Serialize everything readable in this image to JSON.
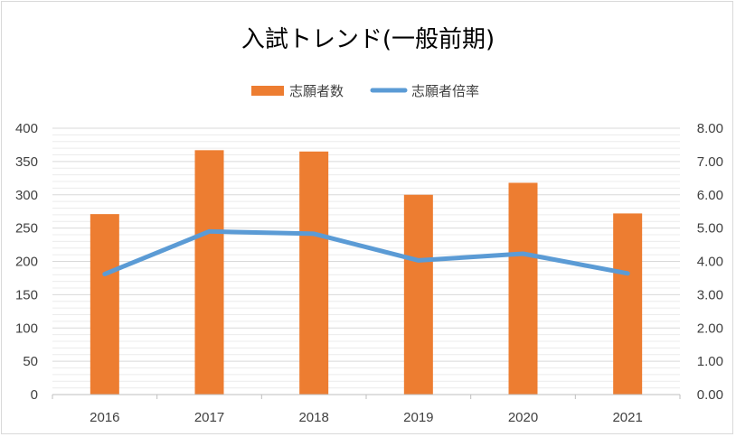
{
  "chart_data": {
    "type": "bar",
    "title": "入試トレンド(一般前期)",
    "categories": [
      "2016",
      "2017",
      "2018",
      "2019",
      "2020",
      "2021"
    ],
    "series": [
      {
        "name": "志願者数",
        "type": "bar",
        "axis": "left",
        "color": "#ed7d31",
        "values": [
          271,
          367,
          365,
          300,
          318,
          272
        ]
      },
      {
        "name": "志願者倍率",
        "type": "line",
        "axis": "right",
        "color": "#5b9bd5",
        "values": [
          3.62,
          4.9,
          4.83,
          4.03,
          4.23,
          3.64
        ]
      }
    ],
    "y_left": {
      "ylim": [
        0,
        400
      ],
      "ticks": [
        "0",
        "50",
        "100",
        "150",
        "200",
        "250",
        "300",
        "350",
        "400"
      ]
    },
    "y_right": {
      "ylim": [
        0,
        8
      ],
      "ticks": [
        "0.00",
        "1.00",
        "2.00",
        "3.00",
        "4.00",
        "5.00",
        "6.00",
        "7.00",
        "8.00"
      ]
    },
    "grid": true,
    "legend_position": "top"
  }
}
